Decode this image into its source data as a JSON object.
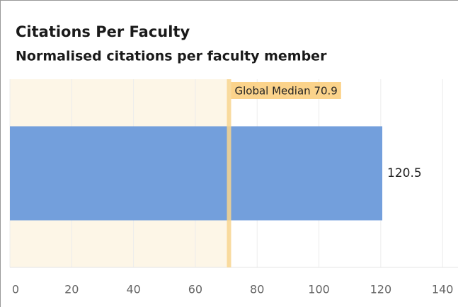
{
  "chart_data": {
    "type": "bar",
    "orientation": "horizontal",
    "title": "Citations Per Faculty",
    "subtitle": "Normalised citations per faculty member",
    "categories": [
      null
    ],
    "values": [
      120.5
    ],
    "color": "#739fdc",
    "xlim": [
      0,
      145
    ],
    "xticks": [
      0,
      20,
      40,
      60,
      80,
      100,
      120,
      140
    ],
    "grid": true,
    "median": {
      "value": 70.9,
      "label": "Global Median 70.9",
      "color": "#f8d58e",
      "shade_color": "#fdf6e7"
    }
  }
}
